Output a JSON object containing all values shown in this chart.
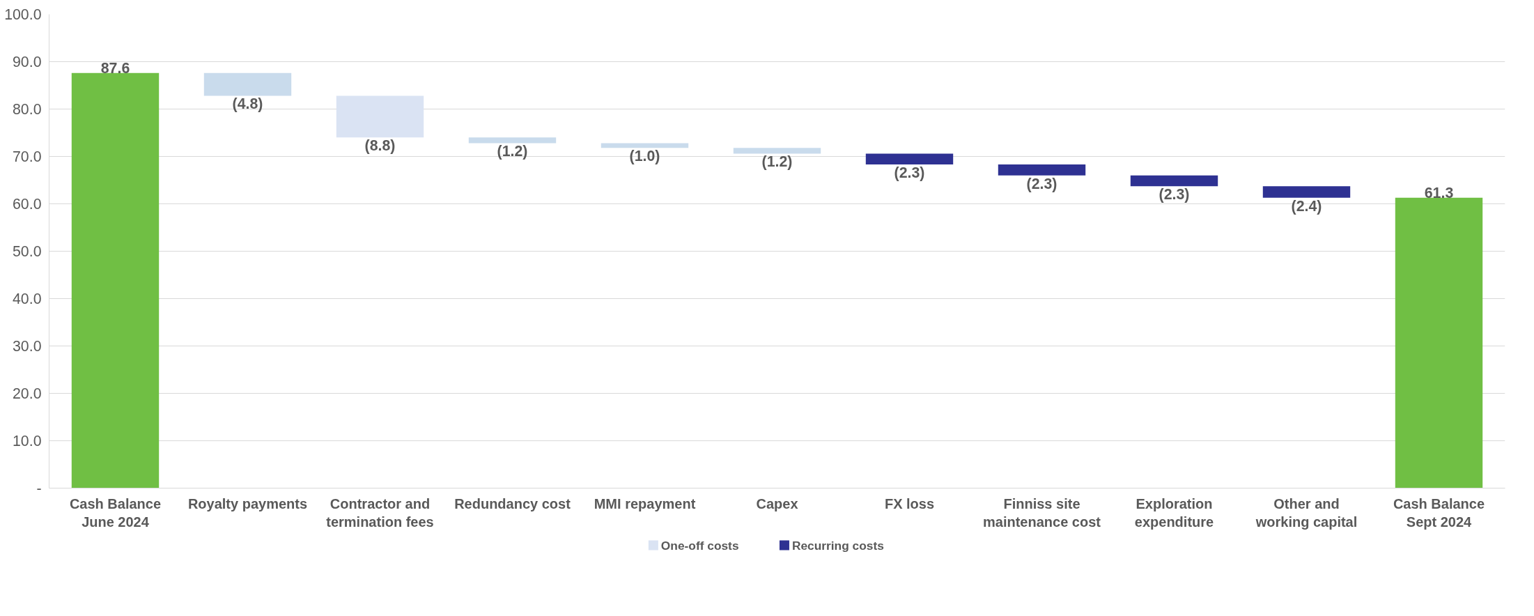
{
  "chart_data": {
    "type": "bar",
    "categories": [
      "Cash Balance June 2024",
      "Royalty payments",
      "Contractor and termination fees",
      "Redundancy cost",
      "MMI repayment",
      "Capex",
      "FX loss",
      "Finniss site maintenance cost",
      "Exploration expenditure",
      "Other and working capital",
      "Cash Balance Sept 2024"
    ],
    "series": [
      {
        "color": "#70bf44",
        "values": [
          87.6,
          null,
          null,
          null,
          null,
          null,
          null,
          null,
          null,
          null,
          61.3
        ],
        "base": [
          0,
          null,
          null,
          null,
          null,
          null,
          null,
          null,
          null,
          null,
          0
        ],
        "value_labels": [
          "87.6",
          null,
          null,
          null,
          null,
          null,
          null,
          null,
          null,
          null,
          "61.3"
        ]
      },
      {
        "name": "One-off  costs",
        "color": "#dae3f3",
        "colors": [
          null,
          "#c9dbec",
          "#dae3f3",
          "#c9dbec",
          "#c9dbec",
          "#c9dbec",
          null,
          null,
          null,
          null,
          null
        ],
        "values": [
          null,
          -4.8,
          -8.8,
          -1.2,
          -1.0,
          -1.2,
          null,
          null,
          null,
          null,
          null
        ],
        "base": [
          null,
          87.6,
          82.8,
          74.0,
          72.8,
          71.8,
          null,
          null,
          null,
          null,
          null
        ],
        "value_labels": [
          null,
          "(4.8)",
          "(8.8)",
          "(1.2)",
          "(1.0)",
          "(1.2)",
          null,
          null,
          null,
          null,
          null
        ]
      },
      {
        "name": "Recurring costs",
        "color": "#2e3192",
        "values": [
          null,
          null,
          null,
          null,
          null,
          null,
          -2.3,
          -2.3,
          -2.3,
          -2.4,
          null
        ],
        "base": [
          null,
          null,
          null,
          null,
          null,
          null,
          70.6,
          68.3,
          66.0,
          63.7,
          null
        ],
        "value_labels": [
          null,
          null,
          null,
          null,
          null,
          null,
          "(2.3)",
          "(2.3)",
          "(2.3)",
          "(2.4)",
          null
        ]
      }
    ],
    "ylim": [
      0,
      100
    ],
    "yticks": [
      {
        "value": 0,
        "label": "-"
      },
      {
        "value": 10,
        "label": "10.0"
      },
      {
        "value": 20,
        "label": "20.0"
      },
      {
        "value": 30,
        "label": "30.0"
      },
      {
        "value": 40,
        "label": "40.0"
      },
      {
        "value": 50,
        "label": "50.0"
      },
      {
        "value": 60,
        "label": "60.0"
      },
      {
        "value": 70,
        "label": "70.0"
      },
      {
        "value": 80,
        "label": "80.0"
      },
      {
        "value": 90,
        "label": "90.0"
      },
      {
        "value": 100,
        "label": "100.0"
      }
    ],
    "grid": "y",
    "legend": "bottom"
  }
}
